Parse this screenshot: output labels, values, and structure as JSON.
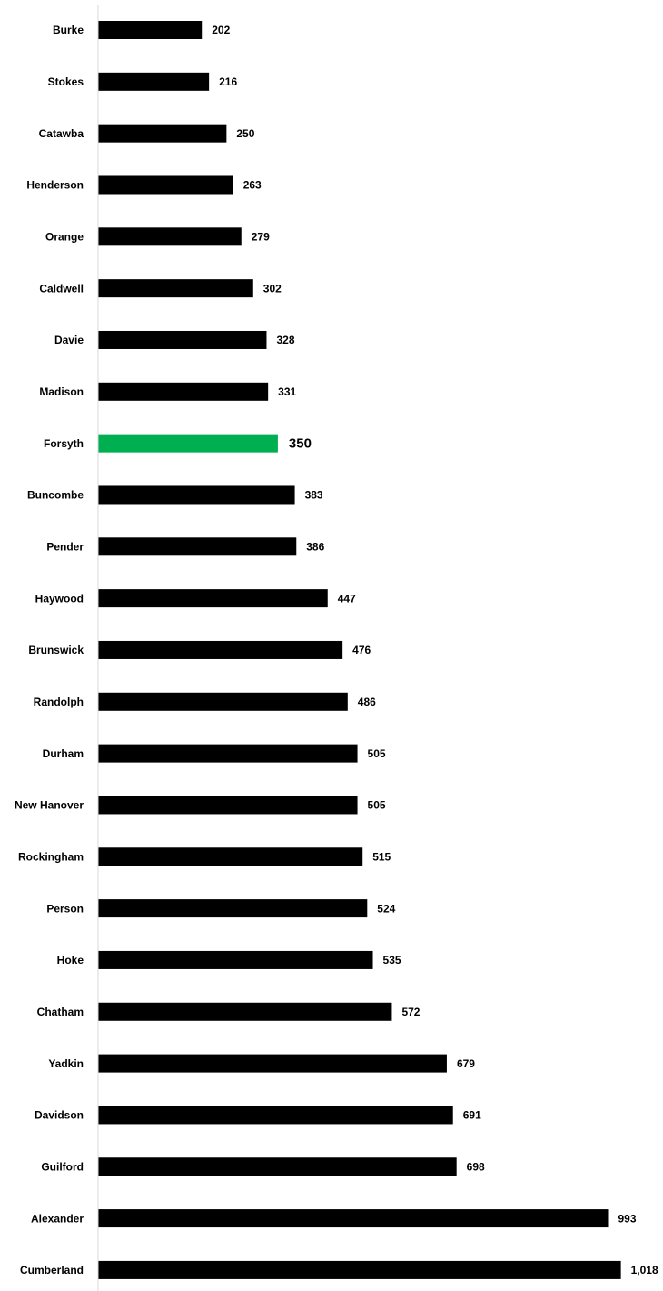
{
  "chart_data": {
    "type": "barh",
    "categories": [
      "Burke",
      "Stokes",
      "Catawba",
      "Henderson",
      "Orange",
      "Caldwell",
      "Davie",
      "Madison",
      "Forsyth",
      "Buncombe",
      "Pender",
      "Haywood",
      "Brunswick",
      "Randolph",
      "Durham",
      "New Hanover",
      "Rockingham",
      "Person",
      "Hoke",
      "Chatham",
      "Yadkin",
      "Davidson",
      "Guilford",
      "Alexander",
      "Cumberland"
    ],
    "values": [
      202,
      216,
      250,
      263,
      279,
      302,
      328,
      331,
      350,
      383,
      386,
      447,
      476,
      486,
      505,
      505,
      515,
      524,
      535,
      572,
      679,
      691,
      698,
      993,
      1018
    ],
    "value_labels": [
      "202",
      "216",
      "250",
      "263",
      "279",
      "302",
      "328",
      "331",
      "350",
      "383",
      "386",
      "447",
      "476",
      "486",
      "505",
      "505",
      "515",
      "524",
      "535",
      "572",
      "679",
      "691",
      "698",
      "993",
      "1,018"
    ],
    "colors": [
      "#000000",
      "#000000",
      "#000000",
      "#000000",
      "#000000",
      "#000000",
      "#000000",
      "#000000",
      "#00b050",
      "#000000",
      "#000000",
      "#000000",
      "#000000",
      "#000000",
      "#000000",
      "#000000",
      "#000000",
      "#000000",
      "#000000",
      "#000000",
      "#000000",
      "#000000",
      "#000000",
      "#000000",
      "#000000"
    ],
    "xlim": [
      0,
      1100
    ]
  }
}
